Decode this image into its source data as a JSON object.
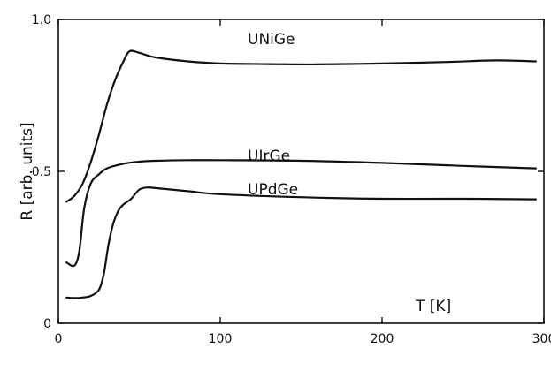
{
  "chart_data": {
    "type": "line",
    "xlabel": "T [K]",
    "ylabel": "R [arb. units]",
    "xlim": [
      0,
      300
    ],
    "ylim": [
      0,
      1.0
    ],
    "x_ticks": [
      0,
      100,
      200,
      300
    ],
    "y_ticks": [
      0,
      0.5,
      1.0
    ],
    "x_tick_labels": [
      "0",
      "100",
      "200",
      "300"
    ],
    "y_tick_labels": [
      "0",
      "0.5",
      "1.0"
    ],
    "grid": false,
    "legend": "none",
    "series": [
      {
        "name": "UNiGe",
        "color": "#111111",
        "x": [
          5,
          10,
          15,
          20,
          25,
          30,
          35,
          40,
          44,
          50,
          60,
          80,
          100,
          130,
          160,
          200,
          240,
          270,
          295
        ],
        "y": [
          0.4,
          0.42,
          0.46,
          0.53,
          0.62,
          0.72,
          0.8,
          0.86,
          0.895,
          0.89,
          0.875,
          0.862,
          0.855,
          0.853,
          0.852,
          0.855,
          0.86,
          0.865,
          0.862
        ]
      },
      {
        "name": "UIrGe",
        "color": "#111111",
        "x": [
          5,
          10,
          13,
          16,
          20,
          25,
          30,
          40,
          50,
          60,
          80,
          100,
          150,
          200,
          250,
          295
        ],
        "y": [
          0.2,
          0.19,
          0.24,
          0.38,
          0.46,
          0.49,
          0.51,
          0.525,
          0.532,
          0.535,
          0.537,
          0.537,
          0.535,
          0.528,
          0.518,
          0.51
        ]
      },
      {
        "name": "UPdGe",
        "color": "#111111",
        "x": [
          5,
          10,
          15,
          20,
          25,
          28,
          31,
          34,
          37,
          40,
          45,
          50,
          55,
          60,
          80,
          100,
          150,
          200,
          250,
          295
        ],
        "y": [
          0.085,
          0.083,
          0.085,
          0.09,
          0.11,
          0.16,
          0.26,
          0.33,
          0.37,
          0.39,
          0.41,
          0.44,
          0.447,
          0.445,
          0.435,
          0.425,
          0.415,
          0.41,
          0.41,
          0.408
        ]
      }
    ]
  }
}
